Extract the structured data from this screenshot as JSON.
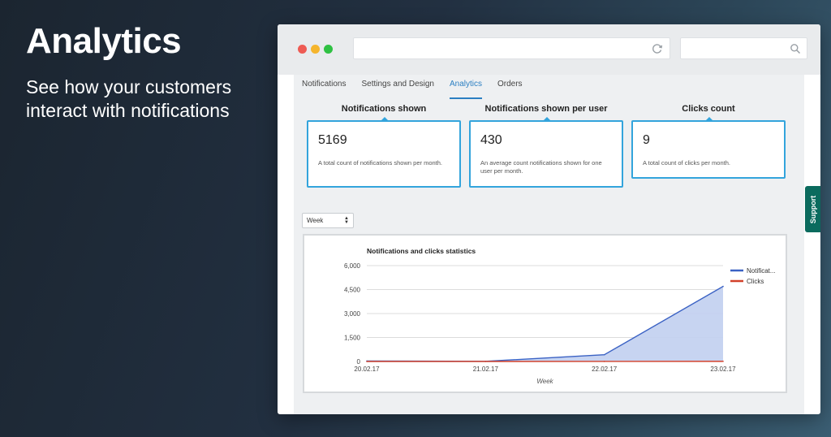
{
  "hero": {
    "title": "Analytics",
    "subtitle": "See how your customers interact with notifications"
  },
  "browser": {
    "address_value": "",
    "search_value": ""
  },
  "tabs": [
    {
      "label": "Notifications",
      "active": false
    },
    {
      "label": "Settings and Design",
      "active": false
    },
    {
      "label": "Analytics",
      "active": true
    },
    {
      "label": "Orders",
      "active": false
    }
  ],
  "stats": [
    {
      "title": "Notifications shown",
      "value": "5169",
      "description": "A total count of notifications shown per month."
    },
    {
      "title": "Notifications shown per user",
      "value": "430",
      "description": "An average count notifications shown for one user per month."
    },
    {
      "title": "Clicks count",
      "value": "9",
      "description": "A total count of clicks per month."
    }
  ],
  "period_select": {
    "selected": "Week"
  },
  "support_label": "Support",
  "colors": {
    "accent": "#2b7fc2",
    "card_border": "#33a4dc",
    "notifications_series": "#3b62c4",
    "notifications_fill": "#c1cff0",
    "clicks_series": "#d2402a",
    "support": "#0b6b5e"
  },
  "chart_data": {
    "type": "area",
    "title": "Notifications and clicks statistics",
    "xlabel": "Week",
    "ylabel": "",
    "categories": [
      "20.02.17",
      "21.02.17",
      "22.02.17",
      "23.02.17"
    ],
    "y_ticks": [
      "6,000",
      "4,500",
      "3,000",
      "1,500",
      "0"
    ],
    "ylim": [
      0,
      6000
    ],
    "grid": true,
    "legend": "right",
    "series": [
      {
        "name": "Notificat...",
        "values": [
          30,
          10,
          420,
          4700
        ]
      },
      {
        "name": "Clicks",
        "values": [
          0,
          0,
          2,
          7
        ]
      }
    ]
  }
}
